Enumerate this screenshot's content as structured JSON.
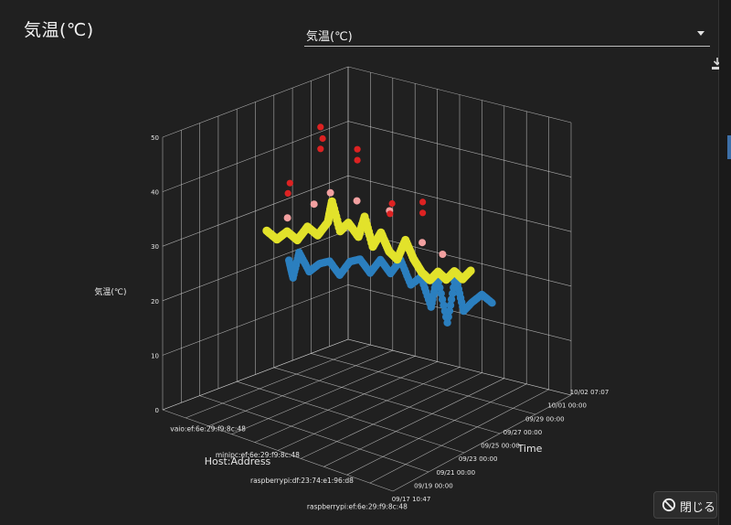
{
  "dialog": {
    "title": "気温(℃)",
    "selector": {
      "selected": "気温(℃)"
    },
    "close_label": "閉じる"
  },
  "colors": {
    "background": "#202020",
    "grid": "#d8d8d8",
    "blue": "#2b7fbf",
    "yellow": "#e2e22b",
    "pink": "#f2a0a0",
    "red": "#dd2222"
  },
  "chart_data": {
    "type": "scatter",
    "zlabel": "気温(℃)",
    "xlabel": "Time",
    "ylabel": "Host:Address",
    "zlim": [
      0,
      50
    ],
    "z_ticks": [
      "0",
      "10",
      "20",
      "30",
      "40",
      "50"
    ],
    "time_ticks": [
      "09/17 10:47",
      "09/19 00:00",
      "09/21 00:00",
      "09/23 00:00",
      "09/25 00:00",
      "09/27 00:00",
      "09/29 00:00",
      "10/01 00:00",
      "10/02 07:07"
    ],
    "hosts": [
      "vaio:ef:6e:29:f9:8c:48",
      "minipc:ef:6e:29:f9:8c:48",
      "raspberrypi:df:23:74:e1:96:d8",
      "raspberrypi:ef:6e:29:f9:8c:48"
    ],
    "grid": true,
    "series": [
      {
        "color": "blue",
        "values": [
          [
            0.0,
            20
          ],
          [
            0.02,
            17
          ],
          [
            0.05,
            22
          ],
          [
            0.1,
            19
          ],
          [
            0.15,
            21
          ],
          [
            0.2,
            22
          ],
          [
            0.25,
            20
          ],
          [
            0.3,
            23
          ],
          [
            0.35,
            24
          ],
          [
            0.4,
            22
          ],
          [
            0.45,
            25
          ],
          [
            0.5,
            23
          ],
          [
            0.55,
            26
          ],
          [
            0.6,
            22
          ],
          [
            0.65,
            24
          ],
          [
            0.7,
            19
          ],
          [
            0.73,
            25
          ],
          [
            0.78,
            17
          ],
          [
            0.82,
            26
          ],
          [
            0.86,
            20
          ],
          [
            0.9,
            22
          ],
          [
            0.95,
            24
          ],
          [
            1.0,
            23
          ]
        ]
      },
      {
        "color": "yellow",
        "values": [
          [
            0.0,
            27
          ],
          [
            0.05,
            26
          ],
          [
            0.1,
            28
          ],
          [
            0.15,
            27
          ],
          [
            0.2,
            30
          ],
          [
            0.25,
            29
          ],
          [
            0.3,
            32
          ],
          [
            0.32,
            36
          ],
          [
            0.36,
            31
          ],
          [
            0.4,
            33
          ],
          [
            0.45,
            31
          ],
          [
            0.48,
            35
          ],
          [
            0.52,
            30
          ],
          [
            0.56,
            33
          ],
          [
            0.6,
            30
          ],
          [
            0.64,
            29
          ],
          [
            0.68,
            33
          ],
          [
            0.72,
            30
          ],
          [
            0.76,
            28
          ],
          [
            0.8,
            27
          ],
          [
            0.84,
            29
          ],
          [
            0.88,
            28
          ],
          [
            0.92,
            30
          ],
          [
            0.96,
            29
          ],
          [
            1.0,
            31
          ]
        ]
      },
      {
        "color": "pink",
        "values": [
          [
            0.12,
            31
          ],
          [
            0.25,
            35
          ],
          [
            0.33,
            38
          ],
          [
            0.46,
            38
          ],
          [
            0.62,
            38
          ],
          [
            0.78,
            34
          ],
          [
            0.88,
            33
          ]
        ]
      },
      {
        "color": "red",
        "values": [
          [
            0.14,
            36
          ],
          [
            0.15,
            38
          ],
          [
            0.3,
            46
          ],
          [
            0.31,
            48
          ],
          [
            0.3,
            50
          ],
          [
            0.48,
            46
          ],
          [
            0.48,
            48
          ],
          [
            0.64,
            38
          ],
          [
            0.65,
            40
          ],
          [
            0.8,
            40
          ],
          [
            0.8,
            42
          ]
        ]
      }
    ]
  }
}
